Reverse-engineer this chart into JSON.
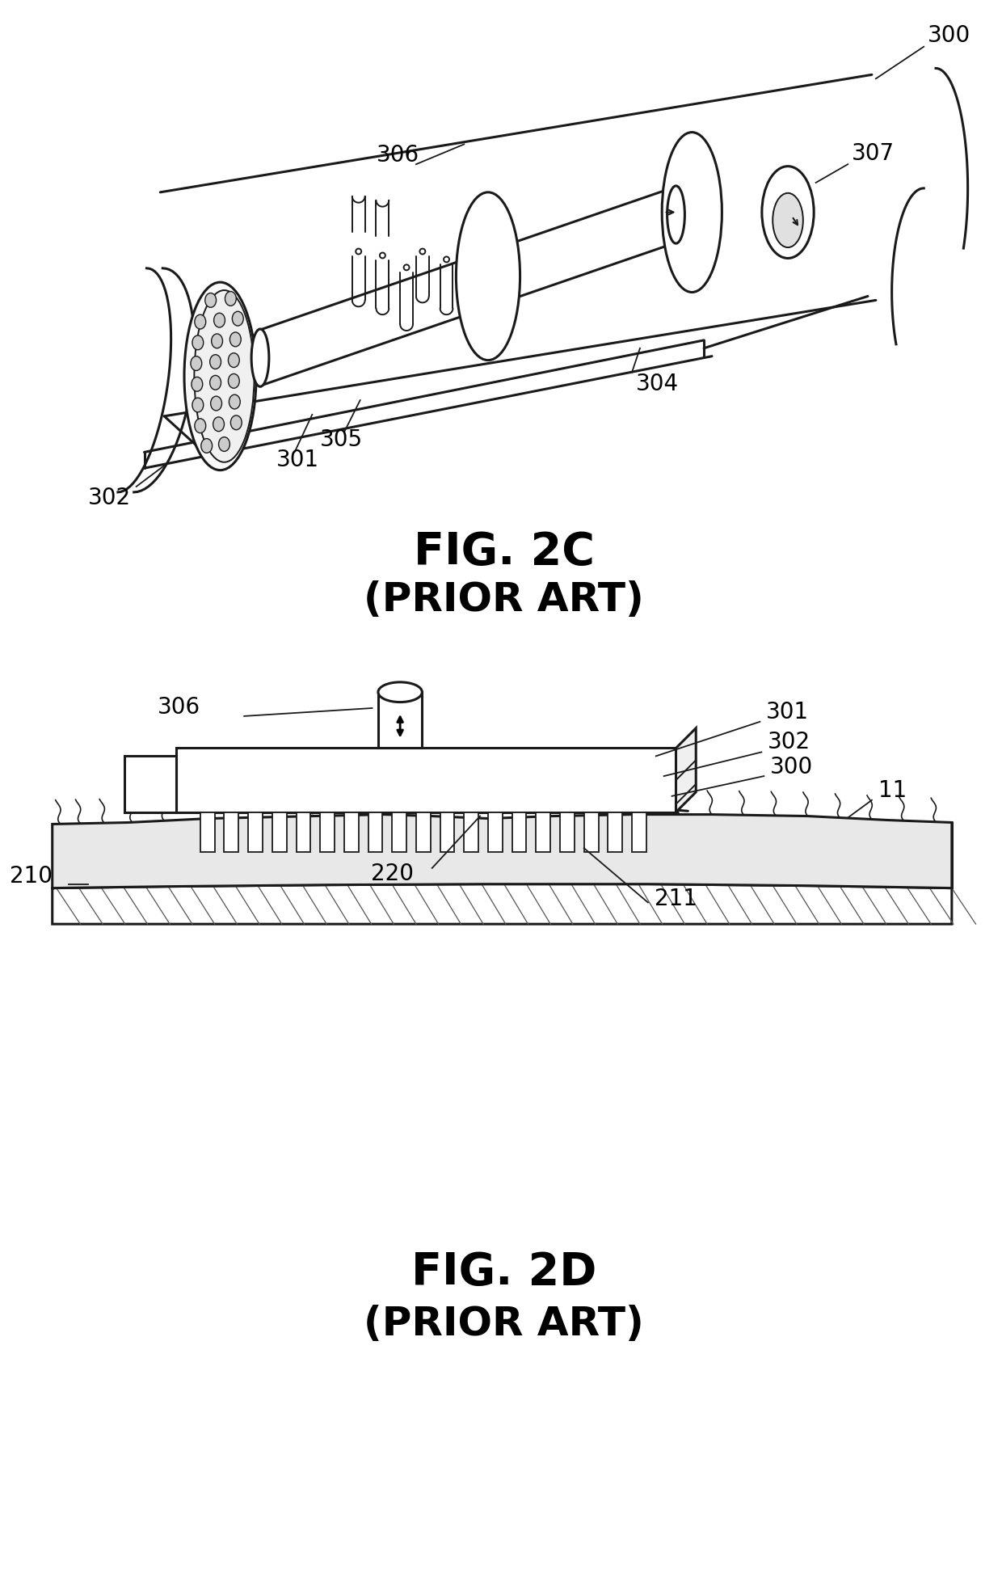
{
  "fig_width": 12.4,
  "fig_height": 19.41,
  "dpi": 100,
  "bg_color": "#ffffff",
  "line_color": "#1a1a1a",
  "label_color": "#000000",
  "fig2c_title": "FIG. 2C",
  "fig2c_subtitle": "(PRIOR ART)",
  "fig2d_title": "FIG. 2D",
  "fig2d_subtitle": "(PRIOR ART)",
  "title_fontsize": 40,
  "subtitle_fontsize": 36,
  "label_fontsize": 20
}
